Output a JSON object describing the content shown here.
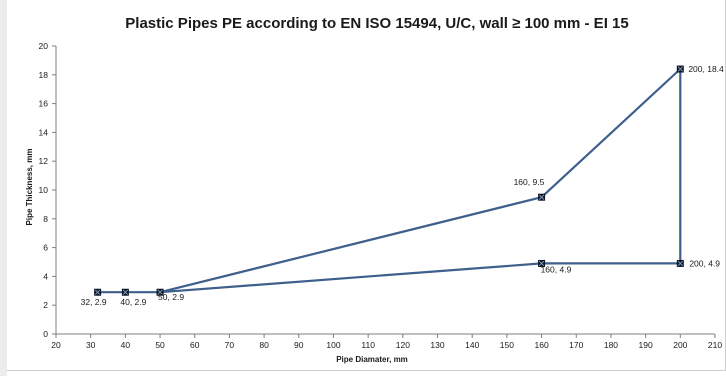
{
  "chart_data": {
    "type": "scatter",
    "title": "Plastic Pipes PE according to EN ISO 15494, U/C, wall ≥ 100 mm - EI 15",
    "xlabel": "Pipe Diamater, mm",
    "ylabel": "Pipe Thickness, mm",
    "xlim": [
      20,
      210
    ],
    "ylim": [
      0,
      20
    ],
    "xticks": [
      20,
      30,
      40,
      50,
      60,
      70,
      80,
      90,
      100,
      110,
      120,
      130,
      140,
      150,
      160,
      170,
      180,
      190,
      200,
      210
    ],
    "yticks": [
      0,
      2,
      4,
      6,
      8,
      10,
      12,
      14,
      16,
      18,
      20
    ],
    "grid": false,
    "legend": "none",
    "line_color": "#3f5f8c",
    "marker_color": "#0b1626",
    "polygon_order": [
      {
        "x": 32,
        "y": 2.9
      },
      {
        "x": 40,
        "y": 2.9
      },
      {
        "x": 50,
        "y": 2.9
      },
      {
        "x": 160,
        "y": 9.5
      },
      {
        "x": 200,
        "y": 18.4
      },
      {
        "x": 200,
        "y": 4.9
      },
      {
        "x": 160,
        "y": 4.9
      },
      {
        "x": 50,
        "y": 2.9
      }
    ],
    "points": [
      {
        "x": 32,
        "y": 2.9,
        "label": "32, 2.9"
      },
      {
        "x": 40,
        "y": 2.9,
        "label": "40, 2.9"
      },
      {
        "x": 50,
        "y": 2.9,
        "label": "50, 2.9"
      },
      {
        "x": 160,
        "y": 9.5,
        "label": "160, 9.5"
      },
      {
        "x": 200,
        "y": 18.4,
        "label": "200, 18.4"
      },
      {
        "x": 160,
        "y": 4.9,
        "label": "160, 4.9"
      },
      {
        "x": 200,
        "y": 4.9,
        "label": "200, 4.9"
      }
    ]
  }
}
